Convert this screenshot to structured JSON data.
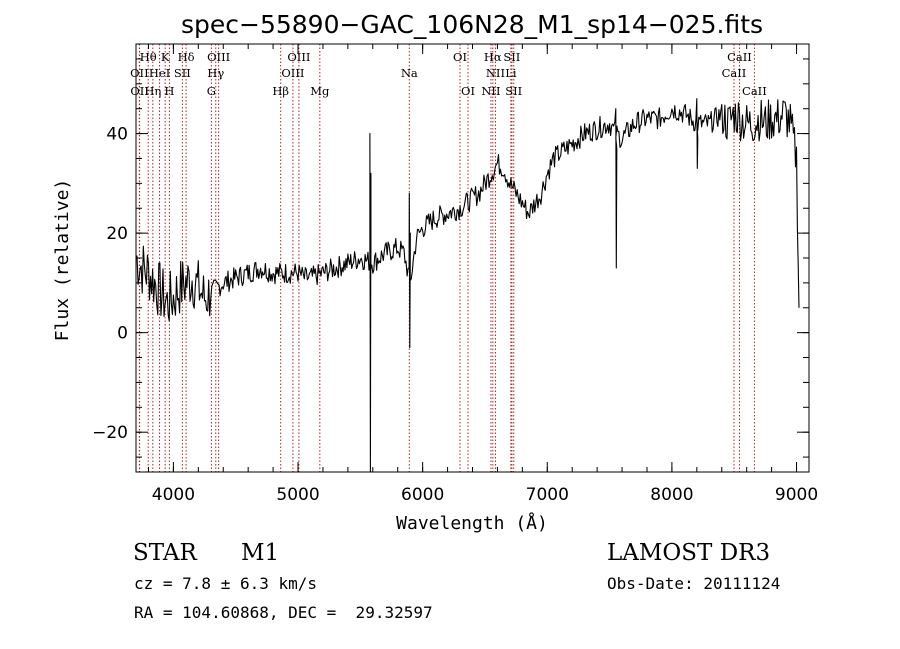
{
  "chart_data": {
    "type": "line",
    "title": "spec−55890−GAC_106N28_M1_sp14−025.fits",
    "xlabel": "Wavelength (Å)",
    "ylabel": "Flux (relative)",
    "xlim": [
      3700,
      9100
    ],
    "ylim": [
      -28,
      58
    ],
    "x_ticks": [
      4000,
      5000,
      6000,
      7000,
      8000,
      9000
    ],
    "y_ticks": [
      -20,
      0,
      20,
      40
    ],
    "y_tick_labels": [
      "−20",
      "0",
      "20",
      "40"
    ],
    "grid": false,
    "series": [
      {
        "name": "spectrum",
        "color": "#000000",
        "x": [
          3700,
          3750,
          3800,
          3850,
          3900,
          3950,
          4000,
          4050,
          4100,
          4150,
          4200,
          4250,
          4300,
          4350,
          4400,
          4500,
          4600,
          4700,
          4800,
          4900,
          5000,
          5050,
          5100,
          5200,
          5300,
          5400,
          5500,
          5600,
          5700,
          5800,
          5850,
          5900,
          5950,
          6000,
          6100,
          6200,
          6300,
          6350,
          6400,
          6450,
          6500,
          6550,
          6600,
          6650,
          6700,
          6750,
          6800,
          6850,
          6900,
          6950,
          7000,
          7050,
          7100,
          7150,
          7200,
          7300,
          7400,
          7500,
          7550,
          7600,
          7700,
          7800,
          7900,
          8000,
          8100,
          8200,
          8300,
          8400,
          8450,
          8500,
          8550,
          8600,
          8650,
          8700,
          8750,
          8800,
          8850,
          8900,
          8950,
          9000,
          9020
        ],
        "y": [
          15,
          13,
          12,
          10,
          8,
          6,
          7,
          9,
          10,
          11,
          9,
          7,
          8,
          9,
          10,
          11,
          12,
          13,
          12,
          12,
          12,
          11,
          11,
          12,
          13,
          14,
          15,
          14,
          16,
          17,
          16,
          10,
          19,
          21,
          23,
          24,
          25,
          26,
          27,
          28,
          30,
          32,
          34,
          33,
          30,
          28,
          26,
          24,
          26,
          28,
          32,
          35,
          36,
          37,
          38,
          40,
          41,
          42,
          40,
          39,
          42,
          43,
          43,
          45,
          44,
          42,
          42,
          44,
          42,
          44,
          43,
          42,
          42,
          43,
          42,
          43,
          43,
          44,
          42,
          35,
          5
        ]
      }
    ],
    "line_labels": {
      "color": "#b22222",
      "lines": [
        {
          "label": "Hθ",
          "x": 3798,
          "row": 1
        },
        {
          "label": "K",
          "x": 3934,
          "row": 1
        },
        {
          "label": "Hδ",
          "x": 4102,
          "row": 1
        },
        {
          "label": "OIII",
          "x": 4363,
          "row": 1
        },
        {
          "label": "OIII",
          "x": 5007,
          "row": 1
        },
        {
          "label": "OI",
          "x": 6300,
          "row": 1
        },
        {
          "label": "Hα",
          "x": 6563,
          "row": 1
        },
        {
          "label": "SII",
          "x": 6716,
          "row": 1
        },
        {
          "label": "CaII",
          "x": 8542,
          "row": 1
        },
        {
          "label": "OII",
          "x": 3727,
          "row": 2
        },
        {
          "label": "HeI",
          "x": 3889,
          "row": 2
        },
        {
          "label": "SII",
          "x": 4072,
          "row": 2
        },
        {
          "label": "Hγ",
          "x": 4340,
          "row": 2
        },
        {
          "label": "OIII",
          "x": 4959,
          "row": 2
        },
        {
          "label": "Na",
          "x": 5893,
          "row": 2
        },
        {
          "label": "NII",
          "x": 6584,
          "row": 2
        },
        {
          "label": "Li",
          "x": 6708,
          "row": 2
        },
        {
          "label": "CaII",
          "x": 8498,
          "row": 2
        },
        {
          "label": "OII",
          "x": 3729,
          "row": 3
        },
        {
          "label": "Hη",
          "x": 3835,
          "row": 3
        },
        {
          "label": "H",
          "x": 3968,
          "row": 3
        },
        {
          "label": "G",
          "x": 4305,
          "row": 3
        },
        {
          "label": "Hβ",
          "x": 4861,
          "row": 3
        },
        {
          "label": "Mg",
          "x": 5175,
          "row": 3
        },
        {
          "label": "OI",
          "x": 6364,
          "row": 3
        },
        {
          "label": "NII",
          "x": 6548,
          "row": 3
        },
        {
          "label": "SII",
          "x": 6731,
          "row": 3
        },
        {
          "label": "CaII",
          "x": 8662,
          "row": 3
        }
      ]
    }
  },
  "info": {
    "object_class": "STAR",
    "subclass": "M1",
    "survey": "LAMOST DR3",
    "redshift": "cz = 7.8 ± 6.3 km/s",
    "obs_date": "Obs-Date: 20111124",
    "coords": "RA = 104.60868, DEC =  29.32597"
  }
}
